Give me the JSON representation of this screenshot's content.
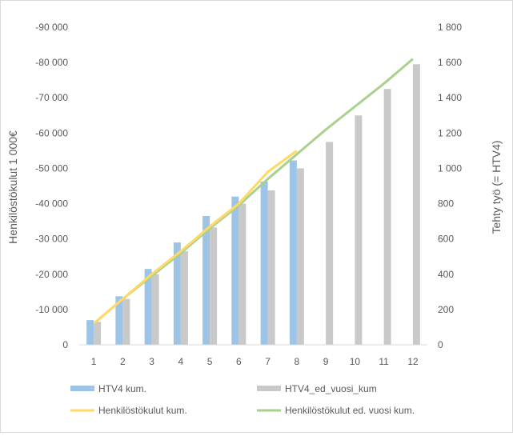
{
  "chart_data": {
    "type": "bar",
    "categories": [
      "1",
      "2",
      "3",
      "4",
      "5",
      "6",
      "7",
      "8",
      "9",
      "10",
      "11",
      "12"
    ],
    "series": [
      {
        "name": "HTV4 kum.",
        "kind": "bar",
        "axis": "right",
        "color": "#9dc3e6",
        "values": [
          140,
          275,
          430,
          580,
          730,
          840,
          925,
          1045,
          null,
          null,
          null,
          null
        ]
      },
      {
        "name": "HTV4_ed_vuosi_kum",
        "kind": "bar",
        "axis": "right",
        "color": "#c9c9c9",
        "values": [
          130,
          260,
          400,
          530,
          665,
          800,
          875,
          1000,
          1150,
          1300,
          1450,
          1590
        ]
      },
      {
        "name": "Henkilöstökulut kum.",
        "kind": "line",
        "axis": "left",
        "color": "#ffd966",
        "values": [
          -6000,
          -13000,
          -20000,
          -26500,
          -33500,
          -40000,
          -49000,
          -55000,
          null,
          null,
          null,
          null
        ]
      },
      {
        "name": "Henkilöstökulut ed. vuosi kum.",
        "kind": "line",
        "axis": "left",
        "color": "#a9d18e",
        "values": [
          -6000,
          -13000,
          -19500,
          -26000,
          -33000,
          -39500,
          -47000,
          -54000,
          -61000,
          -67500,
          -74000,
          -81000
        ]
      }
    ],
    "ylabel": "Henkilöstökulut 1 000€",
    "y2label": "Tehty työ (= HTV4)",
    "ylim": [
      0,
      -90000
    ],
    "y2lim": [
      0,
      1800
    ],
    "yticks": [
      "0",
      "-10 000",
      "-20 000",
      "-30 000",
      "-40 000",
      "-50 000",
      "-60 000",
      "-70 000",
      "-80 000",
      "-90 000"
    ],
    "y2ticks": [
      "0",
      "200",
      "400",
      "600",
      "800",
      "1 000",
      "1 200",
      "1 400",
      "1 600",
      "1 800"
    ],
    "grid": false,
    "legend_position": "bottom"
  }
}
